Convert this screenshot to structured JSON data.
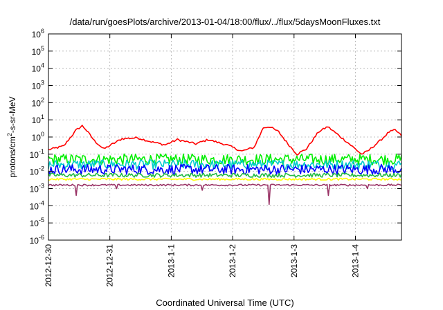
{
  "chart_data": {
    "type": "line",
    "title": "/data/run/goesPlots/archive/2013-01-04/18:00/flux/../flux/5daysMoonFluxes.txt",
    "xlabel": "Coordinated Universal Time (UTC)",
    "ylabel": "protons/cm2-s-sr-MeV",
    "ylabel_parts": {
      "before": "protons/cm",
      "sup": "2",
      "after": "-s-sr-MeV"
    },
    "yscale": "log",
    "ylim": [
      1e-06,
      1000000.0
    ],
    "y_ticks": [
      {
        "exp": -6,
        "base": "10",
        "sup": "-6"
      },
      {
        "exp": -5,
        "base": "10",
        "sup": "-5"
      },
      {
        "exp": -4,
        "base": "10",
        "sup": "-4"
      },
      {
        "exp": -3,
        "base": "10",
        "sup": "-3"
      },
      {
        "exp": -2,
        "base": "10",
        "sup": "-2"
      },
      {
        "exp": -1,
        "base": "10",
        "sup": "-1"
      },
      {
        "exp": 0,
        "base": "10",
        "sup": "0"
      },
      {
        "exp": 1,
        "base": "10",
        "sup": "1"
      },
      {
        "exp": 2,
        "base": "10",
        "sup": "2"
      },
      {
        "exp": 3,
        "base": "10",
        "sup": "3"
      },
      {
        "exp": 4,
        "base": "10",
        "sup": "4"
      },
      {
        "exp": 5,
        "base": "10",
        "sup": "5"
      },
      {
        "exp": 6,
        "base": "10",
        "sup": "6"
      }
    ],
    "xlim": [
      "2012-12-30 00:00",
      "2013-01-04 18:00"
    ],
    "x_ticks": [
      {
        "label": "2012-12-30",
        "day": 0
      },
      {
        "label": "2012-12-31",
        "day": 1
      },
      {
        "label": "2013-1-1",
        "day": 2
      },
      {
        "label": "2013-1-2",
        "day": 3
      },
      {
        "label": "2013-1-3",
        "day": 4
      },
      {
        "label": "2013-1-4",
        "day": 5
      }
    ],
    "grid": true,
    "legend": "none",
    "series": [
      {
        "color": "#ff0000",
        "style": "smooth",
        "x_days": [
          0,
          0.25,
          0.45,
          0.55,
          0.6,
          0.75,
          0.9,
          1.05,
          1.2,
          1.45,
          1.7,
          1.9,
          2.1,
          2.4,
          2.6,
          2.9,
          3.15,
          3.35,
          3.5,
          3.6,
          3.75,
          3.9,
          4.05,
          4.2,
          4.4,
          4.55,
          4.7,
          4.9,
          5.1,
          5.2,
          5.4,
          5.55,
          5.65,
          5.75
        ],
        "values": [
          0.18,
          0.3,
          2.5,
          4.5,
          3.0,
          0.6,
          0.2,
          0.4,
          0.8,
          0.9,
          0.5,
          0.35,
          0.7,
          0.4,
          0.7,
          0.35,
          0.15,
          0.25,
          3.5,
          4.0,
          2.0,
          0.4,
          0.1,
          0.2,
          2.0,
          4.0,
          1.5,
          0.4,
          0.1,
          0.15,
          0.6,
          2.0,
          2.5,
          1.2
        ]
      },
      {
        "color": "#00ee00",
        "style": "noisy",
        "level": 0.05,
        "spread": 0.32
      },
      {
        "color": "#00cccc",
        "style": "noisy",
        "level": 0.025,
        "spread": 0.28
      },
      {
        "color": "#0000ff",
        "style": "noisy",
        "level": 0.013,
        "spread": 0.3
      },
      {
        "color": "#22bb44",
        "style": "noisy",
        "level": 0.006,
        "spread": 0.12
      },
      {
        "color": "#ffff00",
        "style": "noisy",
        "level": 0.0035,
        "spread": 0.06
      },
      {
        "color": "#993366",
        "style": "noisy",
        "level": 0.0016,
        "spread": 0.05,
        "dips": [
          {
            "day": 0.45,
            "value": 0.0004
          },
          {
            "day": 1.1,
            "value": 0.001
          },
          {
            "day": 2.5,
            "value": 0.0008
          },
          {
            "day": 3.6,
            "value": 0.00012
          },
          {
            "day": 4.55,
            "value": 0.0004
          },
          {
            "day": 5.2,
            "value": 0.001
          }
        ]
      }
    ]
  }
}
